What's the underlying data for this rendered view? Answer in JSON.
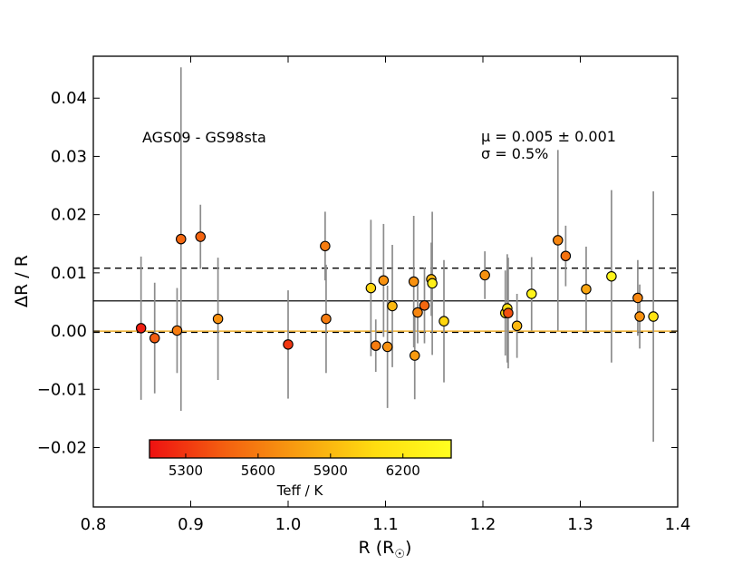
{
  "chart_data": {
    "type": "scatter",
    "annotation": "AGS09 - GS98sta",
    "stats": {
      "mean_label": "μ = 0.005 ± 0.001",
      "sigma_label": "σ = 0.5%",
      "mean": 0.005,
      "mean_err": 0.001,
      "sigma_percent": 0.5
    },
    "xlabel": "R (R",
    "xlabel_sub": "☉",
    "xlabel_close": ")",
    "ylabel": "ΔR / R",
    "xlim": [
      0.8,
      1.4
    ],
    "ylim": [
      -0.03,
      0.05
    ],
    "xticks": [
      0.8,
      0.9,
      1.0,
      1.1,
      1.2,
      1.3,
      1.4
    ],
    "xtick_labels": [
      "0.8",
      "0.9",
      "1.0",
      "1.1",
      "1.2",
      "1.3",
      "1.4"
    ],
    "yticks": [
      -0.02,
      -0.01,
      0.0,
      0.01,
      0.02,
      0.03,
      0.04
    ],
    "ytick_labels": [
      "−0.02",
      "−0.01",
      "0.00",
      "0.01",
      "0.02",
      "0.03",
      "0.04"
    ],
    "hlines": [
      {
        "name": "mean-line",
        "y": 0.0052,
        "style": "solid",
        "color": "#333333"
      },
      {
        "name": "sigma-line",
        "y": 0.0108,
        "style": "dashed",
        "color": "#000000"
      },
      {
        "name": "zero-line-dashed",
        "y": -0.0002,
        "style": "dashed",
        "color": "#000000"
      },
      {
        "name": "zero-line-orange",
        "y": 0.0,
        "style": "solid",
        "color": "#f0b030"
      }
    ],
    "colorbar": {
      "label": "Teff / K",
      "min": 5150,
      "max": 6400,
      "ticks": [
        5300,
        5600,
        5900,
        6200
      ],
      "tick_labels": [
        "5300",
        "5600",
        "5900",
        "6200"
      ],
      "colors": [
        "#ee1111",
        "#f46010",
        "#f8a010",
        "#ffdd10",
        "#ffff20"
      ]
    },
    "points": [
      {
        "x": 0.849,
        "y": 0.0005,
        "err": 0.0123,
        "teff": 5200
      },
      {
        "x": 0.863,
        "y": -0.0012,
        "err": 0.0095,
        "teff": 5450
      },
      {
        "x": 0.886,
        "y": 0.0001,
        "err": 0.0073,
        "teff": 5600
      },
      {
        "x": 0.89,
        "y": 0.0158,
        "err": 0.0295,
        "teff": 5500
      },
      {
        "x": 0.91,
        "y": 0.0162,
        "err": 0.0055,
        "teff": 5480
      },
      {
        "x": 0.928,
        "y": 0.0021,
        "err": 0.0105,
        "teff": 5700
      },
      {
        "x": 1.0,
        "y": -0.0023,
        "err": 0.0093,
        "teff": 5300
      },
      {
        "x": 1.038,
        "y": 0.0146,
        "err": 0.0059,
        "teff": 5600
      },
      {
        "x": 1.039,
        "y": 0.0021,
        "err": 0.0093,
        "teff": 5600
      },
      {
        "x": 1.085,
        "y": 0.0074,
        "err": 0.0117,
        "teff": 6050
      },
      {
        "x": 1.09,
        "y": -0.0025,
        "err": 0.0045,
        "teff": 5600
      },
      {
        "x": 1.098,
        "y": 0.0087,
        "err": 0.0097,
        "teff": 5700
      },
      {
        "x": 1.102,
        "y": -0.0027,
        "err": 0.0105,
        "teff": 5700
      },
      {
        "x": 1.107,
        "y": 0.0043,
        "err": 0.0105,
        "teff": 5900
      },
      {
        "x": 1.129,
        "y": 0.0085,
        "err": 0.0113,
        "teff": 5700
      },
      {
        "x": 1.13,
        "y": -0.0042,
        "err": 0.0075,
        "teff": 5750
      },
      {
        "x": 1.133,
        "y": 0.0032,
        "err": 0.0053,
        "teff": 5650
      },
      {
        "x": 1.14,
        "y": 0.0044,
        "err": 0.0065,
        "teff": 5500
      },
      {
        "x": 1.147,
        "y": 0.0089,
        "err": 0.0063,
        "teff": 5900
      },
      {
        "x": 1.148,
        "y": 0.0082,
        "err": 0.0123,
        "teff": 6250
      },
      {
        "x": 1.16,
        "y": 0.0017,
        "err": 0.0105,
        "teff": 6050
      },
      {
        "x": 1.202,
        "y": 0.0096,
        "err": 0.0041,
        "teff": 5700
      },
      {
        "x": 1.223,
        "y": 0.0031,
        "err": 0.0073,
        "teff": 6050
      },
      {
        "x": 1.225,
        "y": 0.0039,
        "err": 0.0093,
        "teff": 6100
      },
      {
        "x": 1.226,
        "y": 0.0031,
        "err": 0.0095,
        "teff": 5400
      },
      {
        "x": 1.235,
        "y": 0.0009,
        "err": 0.0055,
        "teff": 5900
      },
      {
        "x": 1.25,
        "y": 0.0064,
        "err": 0.0063,
        "teff": 6300
      },
      {
        "x": 1.277,
        "y": 0.0156,
        "err": 0.0155,
        "teff": 5650
      },
      {
        "x": 1.285,
        "y": 0.0129,
        "err": 0.0052,
        "teff": 5550
      },
      {
        "x": 1.306,
        "y": 0.0072,
        "err": 0.0073,
        "teff": 5800
      },
      {
        "x": 1.332,
        "y": 0.0094,
        "err": 0.0148,
        "teff": 6300
      },
      {
        "x": 1.359,
        "y": 0.0057,
        "err": 0.0065,
        "teff": 5650
      },
      {
        "x": 1.361,
        "y": 0.0025,
        "err": 0.0055,
        "teff": 5700
      },
      {
        "x": 1.375,
        "y": 0.0025,
        "err": 0.0215,
        "teff": 6150
      }
    ]
  }
}
